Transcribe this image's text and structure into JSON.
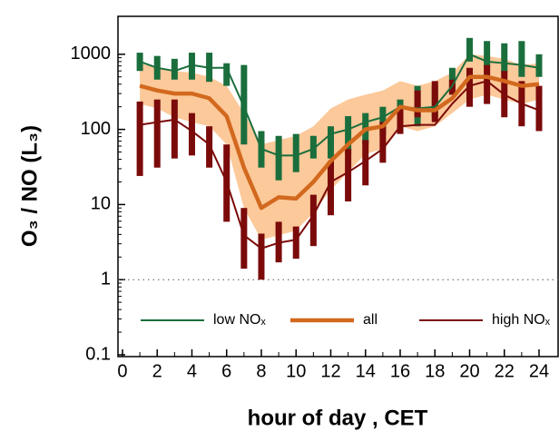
{
  "chart_data": {
    "type": "line",
    "xlabel": "hour of day , CET",
    "ylabel": "O₃ / NO (L₃)",
    "x": [
      1,
      2,
      3,
      4,
      5,
      6,
      7,
      8,
      9,
      10,
      11,
      12,
      13,
      14,
      15,
      16,
      17,
      18,
      19,
      20,
      21,
      22,
      23,
      24
    ],
    "xlim": [
      -0.26,
      25.15
    ],
    "xticks": [
      0,
      2,
      4,
      6,
      8,
      10,
      12,
      14,
      16,
      18,
      20,
      22,
      24
    ],
    "xminorticks": [
      1,
      3,
      5,
      7,
      9,
      11,
      13,
      15,
      17,
      19,
      21,
      23
    ],
    "ylim": [
      0.0946,
      3200
    ],
    "yscale": "log",
    "yticks": [
      0.1,
      1,
      10,
      100,
      1000
    ],
    "reference_line": 1,
    "legend": "bottom",
    "series": [
      {
        "name": "low NOₓ",
        "color": "#1a6e3c",
        "style": "bars",
        "width": 2,
        "values": [
          800,
          660,
          600,
          720,
          660,
          660,
          200,
          55,
          45,
          45,
          55,
          87,
          100,
          125,
          145,
          200,
          190,
          200,
          380,
          1000,
          800,
          760,
          720,
          660
        ],
        "low": [
          600,
          460,
          460,
          460,
          430,
          380,
          63,
          31,
          21,
          27,
          41,
          41,
          47,
          63,
          82,
          125,
          110,
          145,
          330,
          800,
          660,
          570,
          500,
          500
        ],
        "high": [
          1050,
          950,
          870,
          1050,
          1050,
          760,
          720,
          95,
          82,
          87,
          82,
          110,
          150,
          165,
          200,
          250,
          380,
          380,
          660,
          1650,
          1500,
          1400,
          1500,
          1000
        ]
      },
      {
        "name": "all",
        "color": "#d2691e",
        "band_color": "#fcc99a",
        "style": "band",
        "width": 4.5,
        "values": [
          380,
          330,
          300,
          300,
          260,
          150,
          31,
          9,
          12.5,
          12,
          20,
          38,
          63,
          100,
          110,
          200,
          180,
          180,
          260,
          500,
          500,
          440,
          380,
          400
        ],
        "low": [
          218,
          190,
          145,
          125,
          110,
          63,
          9,
          3.4,
          3.9,
          4.5,
          7.8,
          15.6,
          27,
          47,
          55,
          110,
          95,
          110,
          165,
          250,
          290,
          250,
          218,
          250
        ],
        "high": [
          760,
          660,
          600,
          570,
          500,
          380,
          165,
          63,
          72,
          82,
          110,
          190,
          250,
          290,
          330,
          440,
          380,
          440,
          570,
          1000,
          950,
          870,
          720,
          760
        ]
      },
      {
        "name": "high NOₓ",
        "color": "#7b0a0a",
        "style": "bars",
        "width": 2,
        "values": [
          115,
          125,
          135,
          95,
          63,
          20,
          3.9,
          2.6,
          3.1,
          3.4,
          7.2,
          20,
          27,
          38,
          55,
          110,
          115,
          115,
          220,
          380,
          440,
          290,
          220,
          180
        ],
        "low": [
          24,
          31,
          41,
          45,
          31,
          5.9,
          1.4,
          1,
          1.7,
          1.9,
          2.8,
          7.2,
          11,
          18,
          36,
          87,
          145,
          125,
          290,
          200,
          218,
          145,
          110,
          95
        ],
        "high": [
          235,
          250,
          250,
          165,
          110,
          63,
          9,
          4.1,
          5.9,
          5.1,
          13.5,
          38,
          55,
          72,
          125,
          200,
          330,
          440,
          460,
          660,
          720,
          600,
          440,
          380
        ]
      }
    ]
  }
}
